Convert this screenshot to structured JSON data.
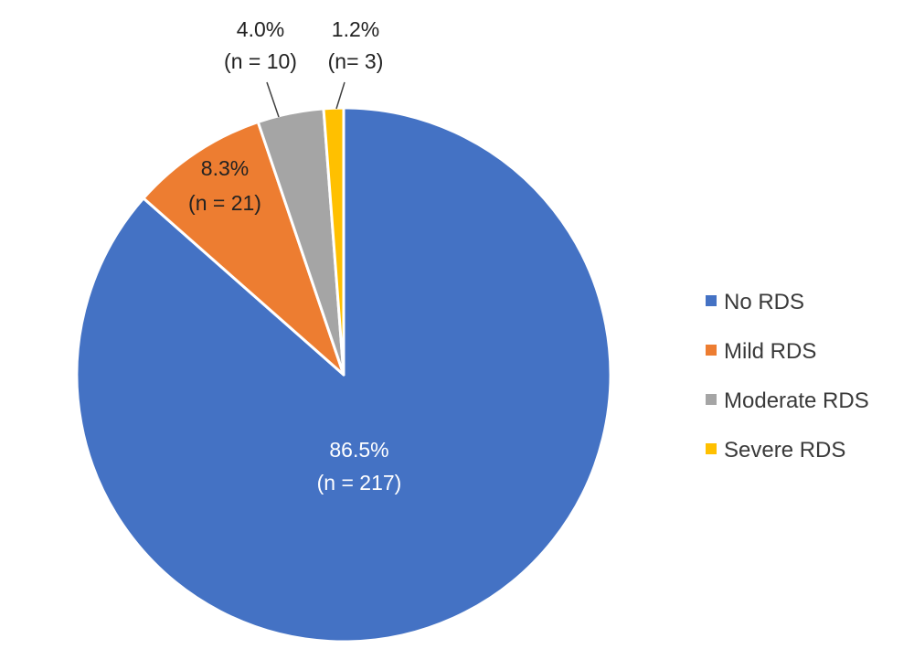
{
  "chart_data": {
    "type": "pie",
    "series": [
      {
        "name": "No RDS",
        "value": 86.5,
        "count": 217,
        "color": "#4472C4",
        "label_pct": "86.5%",
        "label_n": "(n = 217)",
        "label_color": "#ffffff"
      },
      {
        "name": "Mild RDS",
        "value": 8.3,
        "count": 21,
        "color": "#ED7D31",
        "label_pct": "8.3%",
        "label_n": "(n = 21)",
        "label_color": "#222222"
      },
      {
        "name": "Moderate RDS",
        "value": 4.0,
        "count": 10,
        "color": "#A5A5A5",
        "label_pct": "4.0%",
        "label_n": "(n = 10)",
        "label_color": "#222222"
      },
      {
        "name": "Severe RDS",
        "value": 1.2,
        "count": 3,
        "color": "#FFC000",
        "label_pct": "1.2%",
        "label_n": "(n= 3)",
        "label_color": "#222222"
      }
    ],
    "start_angle": "12 o'clock",
    "direction": "clockwise",
    "legend_position": "right"
  }
}
